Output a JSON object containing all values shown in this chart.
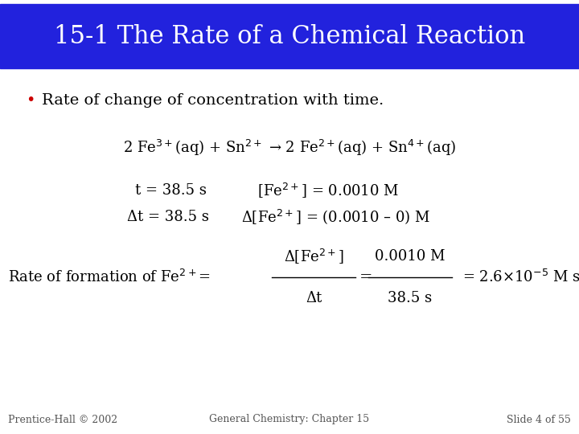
{
  "title": "15-1 The Rate of a Chemical Reaction",
  "title_bg": "#2222dd",
  "title_color": "#ffffff",
  "bg_color": "#ffffff",
  "bullet_color": "#cc0000",
  "text_color": "#000000",
  "footer_color": "#555555",
  "bullet_text": "Rate of change of concentration with time.",
  "equation1": "2 Fe$^{3+}$(aq) + Sn$^{2+}$ → 2 Fe$^{2+}$(aq) + Sn$^{4+}$(aq)",
  "line1_left": "t = 38.5 s",
  "line1_right": "[Fe$^{2+}$] = 0.0010 M",
  "line2_left": "Δt = 38.5 s",
  "line2_right": "Δ[Fe$^{2+}$] = (0.0010 – 0) M",
  "rate_label": "Rate of formation of Fe$^{2+}$=",
  "frac1_num": "Δ[Fe$^{2+}$]",
  "frac1_den": "Δt",
  "frac2_num": "0.0010 M",
  "frac2_den": "38.5 s",
  "rate_result": "= 2.6×10$^{-5}$ M s$^{-1}$",
  "footer_left": "Prentice-Hall © 2002",
  "footer_center": "General Chemistry: Chapter 15",
  "footer_right": "Slide 4 of 55",
  "title_fontsize": 22,
  "body_fontsize": 14,
  "small_fontsize": 9
}
